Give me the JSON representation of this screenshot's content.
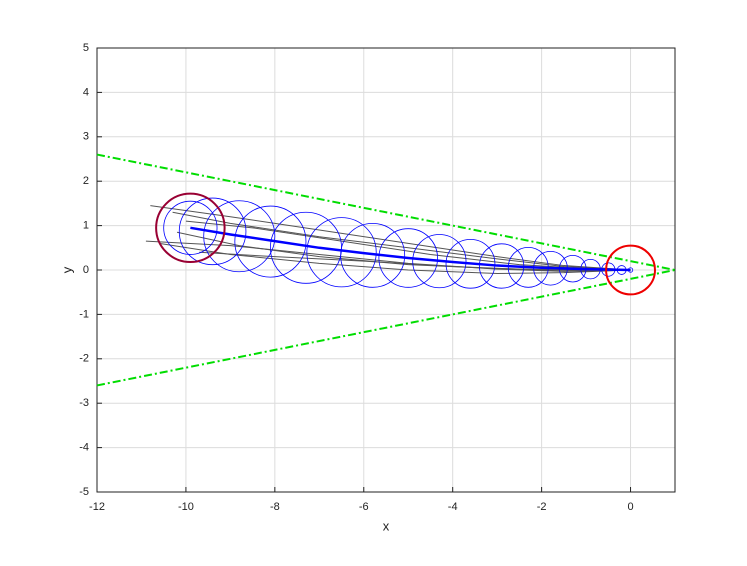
{
  "chart_data": {
    "type": "line",
    "xlabel": "x",
    "ylabel": "y",
    "xlim": [
      -12,
      1
    ],
    "ylim": [
      -5,
      5
    ],
    "xticks": [
      -12,
      -10,
      -8,
      -6,
      -4,
      -2,
      0
    ],
    "yticks": [
      -5,
      -4,
      -3,
      -2,
      -1,
      0,
      1,
      2,
      3,
      4,
      5
    ],
    "grid": true,
    "series": [
      {
        "color": "#555555",
        "style": "solid",
        "width": 1,
        "x": [
          -10.8,
          -9,
          -7,
          -5,
          -3,
          -1.5,
          0
        ],
        "values": [
          1.45,
          1.2,
          0.9,
          0.6,
          0.3,
          0.1,
          0
        ]
      },
      {
        "color": "#555555",
        "style": "solid",
        "width": 1,
        "x": [
          -10.6,
          -9,
          -7,
          -5,
          -3,
          -1.5,
          0
        ],
        "values": [
          0.6,
          0.35,
          0.15,
          0,
          -0.08,
          -0.06,
          0
        ]
      },
      {
        "color": "#555555",
        "style": "solid",
        "width": 1,
        "x": [
          -10.3,
          -9,
          -7,
          -5,
          -3,
          -1.5,
          0
        ],
        "values": [
          1.3,
          1.05,
          0.75,
          0.5,
          0.25,
          0.08,
          0
        ]
      },
      {
        "color": "#555555",
        "style": "solid",
        "width": 1,
        "x": [
          -10.9,
          -9,
          -7,
          -5,
          -3,
          -1.5,
          0
        ],
        "values": [
          0.65,
          0.55,
          0.35,
          0.15,
          0.02,
          -0.03,
          0
        ]
      },
      {
        "color": "#555555",
        "style": "solid",
        "width": 1,
        "x": [
          -10,
          -8.5,
          -6.5,
          -4.5,
          -2.5,
          -1,
          0
        ],
        "values": [
          1.1,
          0.95,
          0.65,
          0.35,
          0.12,
          0.03,
          0
        ]
      },
      {
        "color": "#555555",
        "style": "solid",
        "width": 1,
        "x": [
          -9.7,
          -8,
          -6,
          -4,
          -2,
          -0.8,
          0
        ],
        "values": [
          0.4,
          0.3,
          0.2,
          0.08,
          0,
          -0.02,
          0
        ]
      },
      {
        "color": "#555555",
        "style": "solid",
        "width": 1,
        "x": [
          -10.2,
          -8.8,
          -7,
          -5,
          -3,
          -1.2,
          0
        ],
        "values": [
          0.85,
          0.55,
          0.3,
          0.12,
          0.03,
          0,
          0
        ]
      },
      {
        "color": "#00dd00",
        "style": "dashdot",
        "width": 2,
        "x": [
          -12,
          1
        ],
        "values": [
          2.6,
          0
        ]
      },
      {
        "color": "#00dd00",
        "style": "dashdot",
        "width": 2,
        "x": [
          -12,
          1
        ],
        "values": [
          -2.6,
          0
        ]
      },
      {
        "color": "#0000ff",
        "style": "solid",
        "width": 2.5,
        "x": [
          -9.9,
          -9,
          -8,
          -7,
          -6,
          -5,
          -4,
          -3,
          -2,
          -1,
          0
        ],
        "values": [
          0.95,
          0.8,
          0.65,
          0.5,
          0.38,
          0.27,
          0.18,
          0.1,
          0.05,
          0.02,
          0
        ]
      }
    ],
    "circles": [
      {
        "color": "#0000ff",
        "x": [
          -9.9,
          -9.4,
          -8.8,
          -8.1,
          -7.3,
          -6.5,
          -5.8,
          -5,
          -4.3,
          -3.6,
          -2.9,
          -2.3,
          -1.8,
          -1.3,
          -0.9,
          -0.5,
          -0.2,
          0
        ],
        "y": [
          0.95,
          0.87,
          0.76,
          0.64,
          0.5,
          0.4,
          0.33,
          0.27,
          0.2,
          0.14,
          0.09,
          0.06,
          0.04,
          0.03,
          0.02,
          0.01,
          0,
          0
        ],
        "r": [
          0.6,
          0.75,
          0.8,
          0.8,
          0.8,
          0.78,
          0.72,
          0.66,
          0.6,
          0.55,
          0.5,
          0.45,
          0.38,
          0.3,
          0.22,
          0.15,
          0.1,
          0.05
        ]
      },
      {
        "color": "#990033",
        "x": [
          -9.9
        ],
        "y": [
          0.95
        ],
        "r": [
          0.77
        ]
      },
      {
        "color": "#ee0000",
        "x": [
          0
        ],
        "y": [
          0
        ],
        "r": [
          0.55
        ]
      }
    ]
  }
}
